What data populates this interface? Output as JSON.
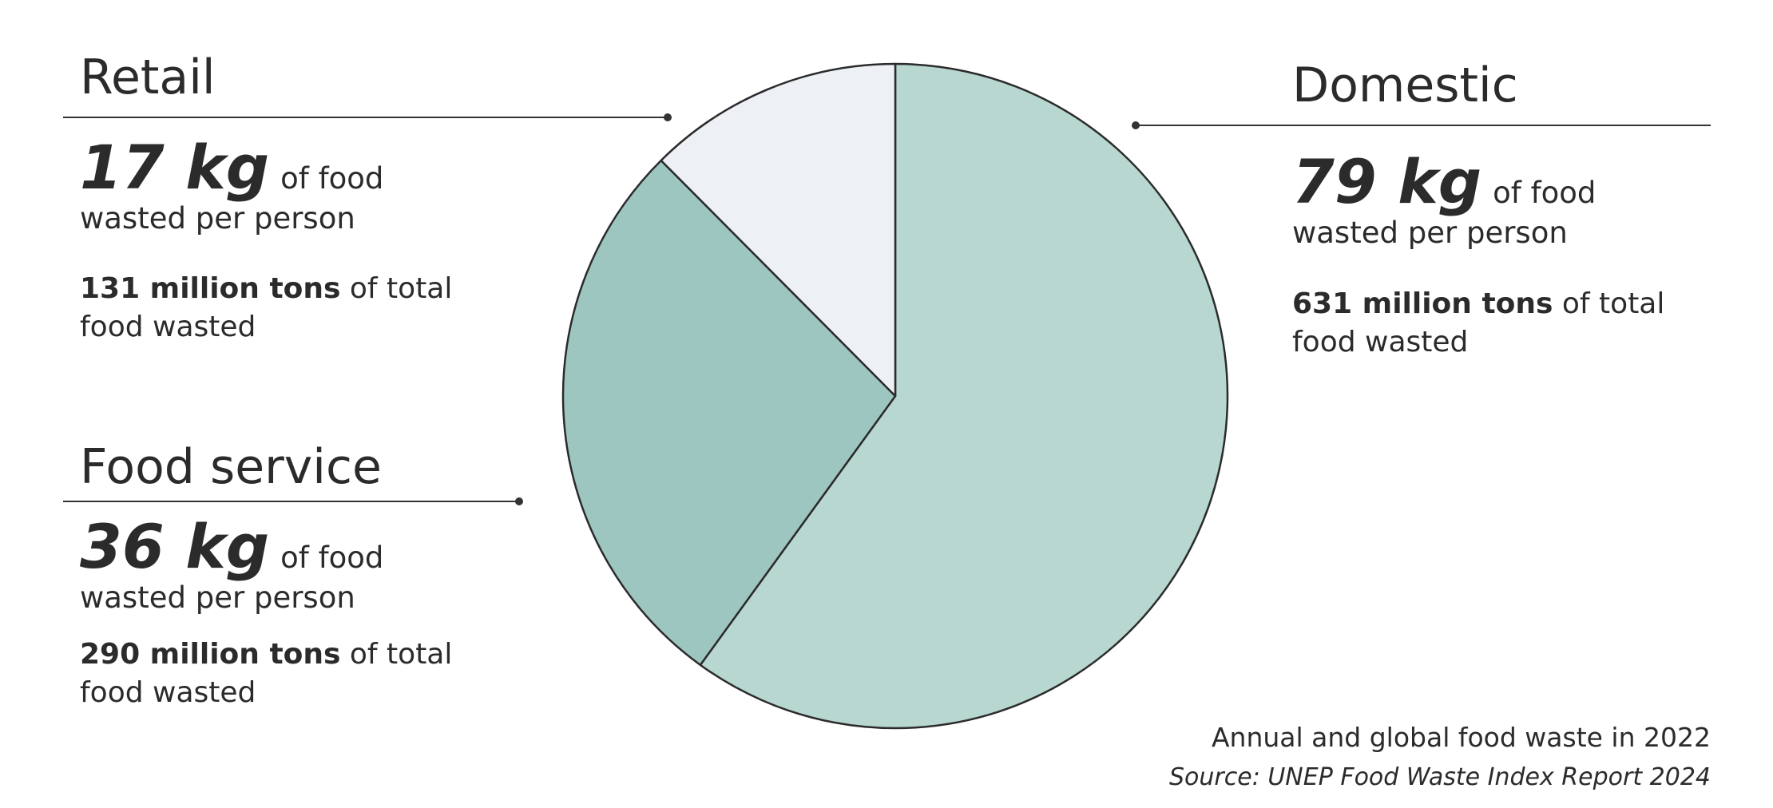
{
  "chart_data": {
    "type": "pie",
    "categories": [
      "Domestic",
      "Food service",
      "Retail"
    ],
    "values": [
      631,
      290,
      131
    ],
    "value_labels": [
      "631 million tons",
      "290 million tons",
      "131 million tons"
    ],
    "colors": [
      "#b7d7d0",
      "#9ec6c1",
      "#edf0f4"
    ],
    "per_person": {
      "values": [
        79,
        36,
        17
      ],
      "value_labels": [
        "79 kg",
        "36 kg",
        "17 kg"
      ]
    },
    "per_person_text": "of food wasted per person",
    "total_text": "of total food wasted",
    "caption": "Annual and global food waste in 2022",
    "source": "Source: UNEP Food Waste Index Report 2024"
  }
}
